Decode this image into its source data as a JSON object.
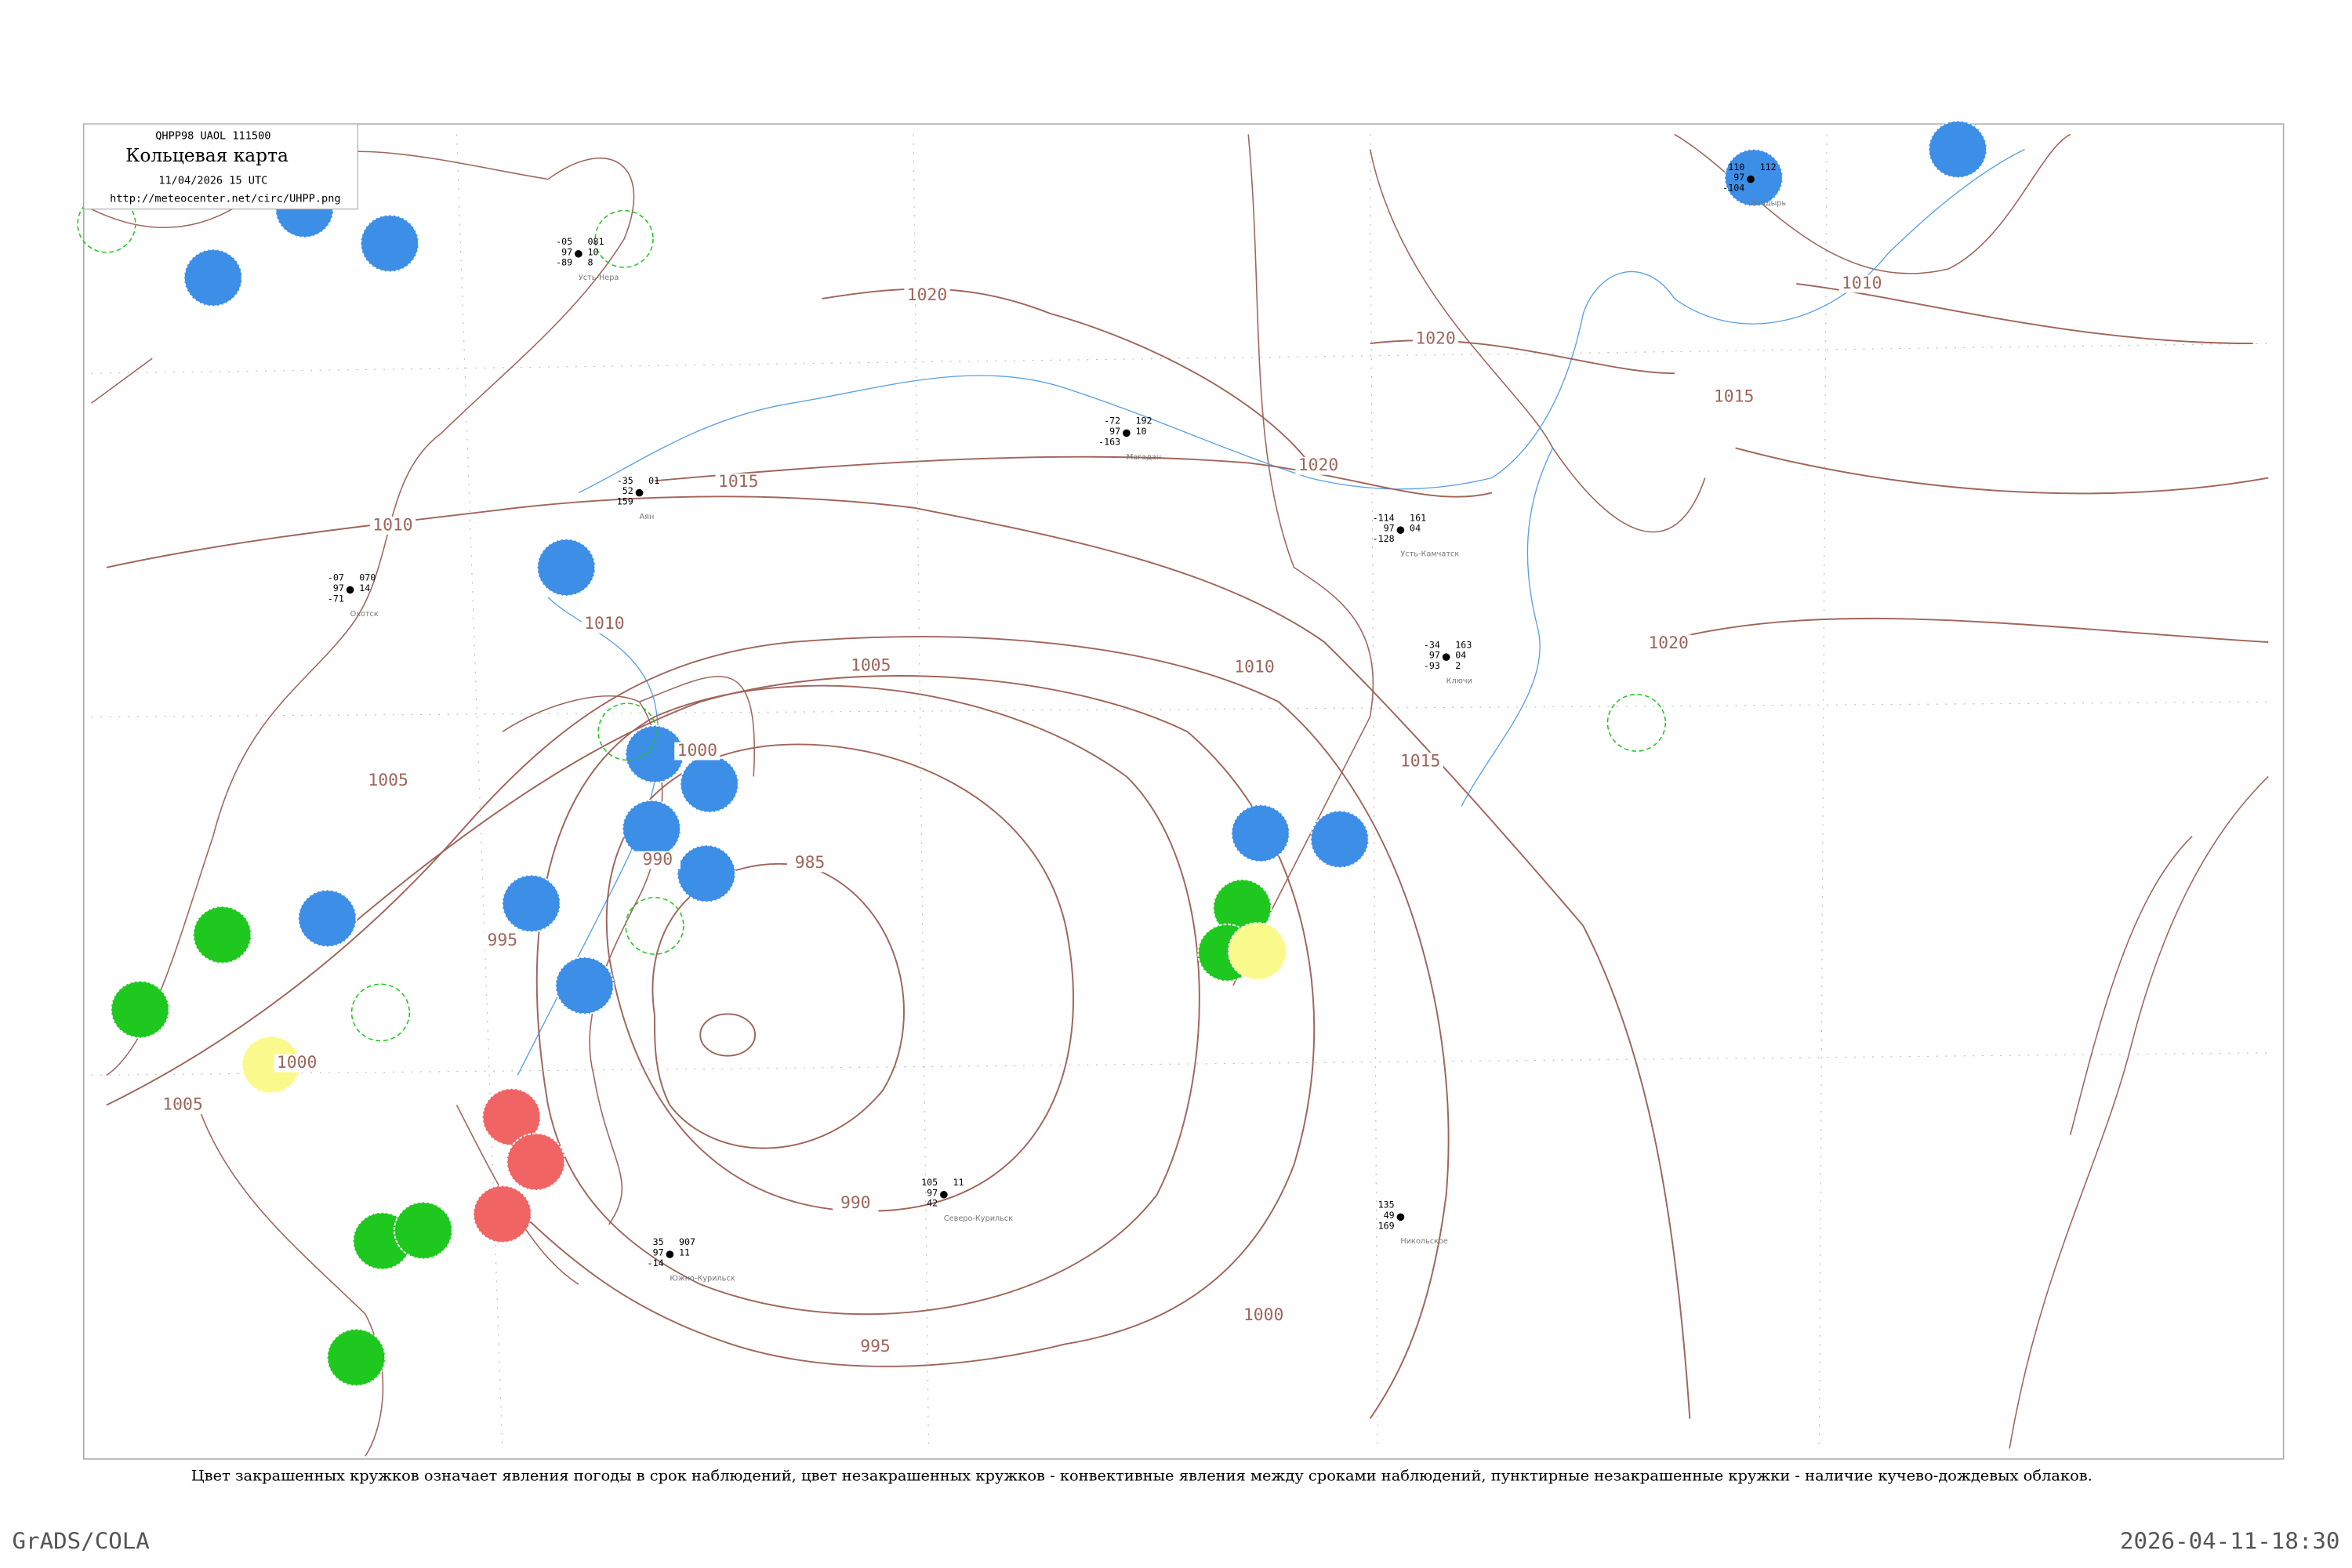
{
  "header": {
    "code": "QHPP98  UAOL  111500",
    "title": "Кольцевая карта",
    "date": "11/04/2026 15 UTC",
    "url": "http://meteocenter.net/circ/UHPP.png"
  },
  "isobar_labels": [
    "1010",
    "1015",
    "1010",
    "1005",
    "1005",
    "1000",
    "995",
    "990",
    "985",
    "1000",
    "1005",
    "990",
    "995",
    "1000",
    "1020",
    "1020",
    "1020",
    "1010",
    "1015",
    "1020",
    "1015",
    "1010"
  ],
  "stations": [
    {
      "name": "Усть-Нера",
      "values": [
        "-05",
        "97",
        "-89",
        "081",
        "10",
        "8"
      ]
    },
    {
      "name": "Усть-Камчатск",
      "values": [
        "-114",
        "97",
        "-128",
        "161",
        "04"
      ]
    },
    {
      "name": "Ключи",
      "values": [
        "-34",
        "97",
        "-93",
        "163",
        "04",
        "2"
      ]
    },
    {
      "name": "Аян",
      "values": [
        "-35",
        "52",
        "159",
        "01"
      ]
    },
    {
      "name": "Охотск",
      "values": [
        "-07",
        "97",
        "-71",
        "070",
        "14"
      ]
    },
    {
      "name": "Магадан",
      "values": [
        "-72",
        "97",
        "-163",
        "192",
        "10"
      ]
    },
    {
      "name": "Северо-Курильск",
      "values": [
        "105",
        "97",
        "42",
        "11"
      ]
    },
    {
      "name": "Южно-Курильск",
      "values": [
        "35",
        "97",
        "-14",
        "907",
        "11"
      ]
    },
    {
      "name": "Никольское",
      "values": [
        "135",
        "49",
        "169"
      ]
    },
    {
      "name": "Анадырь",
      "values": [
        "110",
        "97",
        "-104",
        "112"
      ]
    }
  ],
  "footer": {
    "caption": "Цвет закрашенных кружков означает явления погоды в срок наблюдений, цвет незакрашенных кружков - конвективные явления между сроками наблюдений, пунктирные незакрашенные кружки - наличие кучево-дождевых облаков.",
    "software": "GrADS/COLA",
    "timestamp": "2026-04-11-18:30"
  }
}
